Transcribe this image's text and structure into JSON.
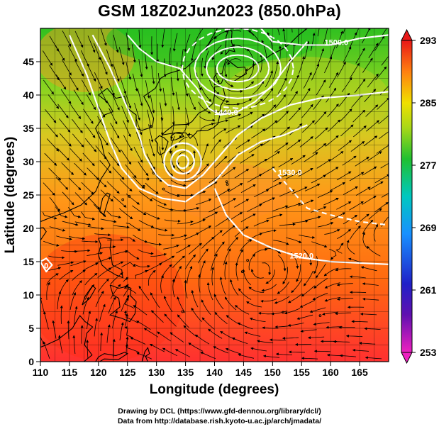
{
  "title": "GSM 18Z02Jun2023 (850.0hPa)",
  "credits": {
    "line1": "Drawing by DCL (https://www.gfd-dennou.org/library/dcl/)",
    "line2": "Data from http://database.rish.kyoto-u.ac.jp/arch/jmadata/"
  },
  "map": {
    "xlabel": "Longitude (degrees)",
    "ylabel": "Latitude  (degrees)",
    "xlim": [
      110,
      170
    ],
    "ylim": [
      0,
      50
    ],
    "xticks": [
      110,
      115,
      120,
      125,
      130,
      135,
      140,
      145,
      150,
      155,
      160,
      165
    ],
    "yticks": [
      0,
      5,
      10,
      15,
      20,
      25,
      30,
      35,
      40,
      45
    ],
    "grid": true,
    "variable": "temperature (K) shaded, geopotential height contours, streamlines",
    "colorbar": {
      "ticks": [
        293,
        285,
        277,
        269,
        261,
        253
      ],
      "min": 253,
      "max": 293,
      "colors": [
        "#d0108a",
        "#2020c0",
        "#1e90ff",
        "#00c8a0",
        "#20c020",
        "#e8e000",
        "#ff8000",
        "#e01010"
      ]
    },
    "contour_labels": [
      {
        "text": "1500.0",
        "lon": 161,
        "lat": 47.5
      },
      {
        "text": "1440.0",
        "lon": 142,
        "lat": 37
      },
      {
        "text": "1530.0",
        "lon": 153,
        "lat": 28
      },
      {
        "text": "1520.0",
        "lon": 155,
        "lat": 15.5
      },
      {
        "text": "0",
        "lon": 111,
        "lat": 14
      }
    ],
    "lows": [
      {
        "lon": 135,
        "lat": 30
      },
      {
        "lon": 144,
        "lat": 44
      }
    ]
  },
  "chart_data": {
    "type": "heatmap",
    "title": "GSM 18Z02Jun2023 (850.0hPa)",
    "xlabel": "Longitude (degrees)",
    "ylabel": "Latitude  (degrees)",
    "xlim": [
      110,
      170
    ],
    "ylim": [
      0,
      50
    ],
    "colorbar_ticks": [
      293,
      285,
      277,
      269,
      261,
      253
    ]
  }
}
